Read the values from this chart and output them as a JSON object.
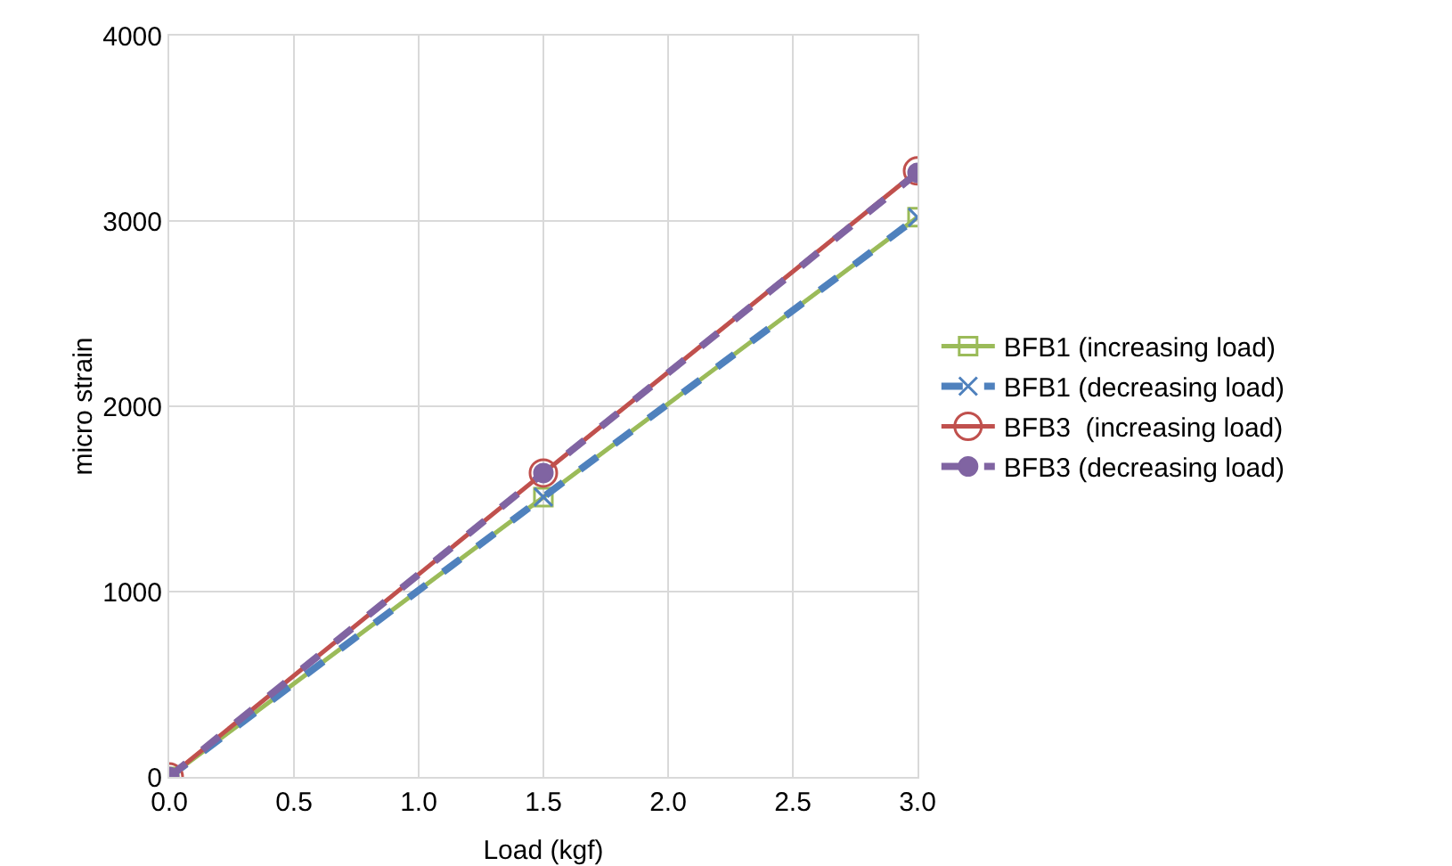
{
  "chart_data": {
    "type": "line",
    "xlabel": "Load (kgf)",
    "ylabel": "micro strain",
    "x": [
      0,
      1.5,
      3
    ],
    "series": [
      {
        "name": "BFB1 (increasing load)",
        "color": "#9bbb59",
        "values": [
          0,
          1510,
          3020
        ],
        "marker": "square",
        "line_style": "solid"
      },
      {
        "name": "BFB1 (decreasing load)",
        "color": "#4f81bd",
        "values": [
          0,
          1510,
          3020
        ],
        "marker": "cross",
        "line_style": "dashed"
      },
      {
        "name": "BFB3  (increasing load)",
        "color": "#c0504d",
        "values": [
          0,
          1640,
          3270
        ],
        "marker": "circle",
        "line_style": "solid"
      },
      {
        "name": "BFB3 (decreasing load)",
        "color": "#8064a2",
        "values": [
          0,
          1640,
          3260
        ],
        "marker": "circle",
        "line_style": "dashed"
      }
    ],
    "xlim": [
      0,
      3
    ],
    "xticks": [
      {
        "value": 0,
        "label": "0.0"
      },
      {
        "value": 0.5,
        "label": "0.5"
      },
      {
        "value": 1,
        "label": "1.0"
      },
      {
        "value": 1.5,
        "label": "1.5"
      },
      {
        "value": 2,
        "label": "2.0"
      },
      {
        "value": 2.5,
        "label": "2.5"
      },
      {
        "value": 3,
        "label": "3.0"
      }
    ],
    "ylim": [
      0,
      4000
    ],
    "yticks": [
      0,
      1000,
      2000,
      3000,
      4000
    ],
    "grid": true,
    "legend": "right"
  }
}
